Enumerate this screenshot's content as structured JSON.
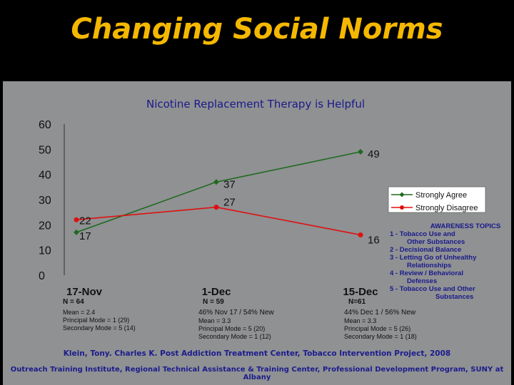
{
  "slide_title": "Changing Social Norms",
  "chart_data": {
    "type": "line",
    "title": "Nicotine Replacement Therapy is Helpful",
    "categories": [
      "17-Nov",
      "1-Dec",
      "15-Dec"
    ],
    "series": [
      {
        "name": "Strongly Agree",
        "values": [
          17,
          37,
          49
        ],
        "color": "#1f6a1f"
      },
      {
        "name": "Strongly Disagree",
        "values": [
          22,
          27,
          16
        ],
        "color": "#e01010"
      }
    ],
    "ylim": [
      0,
      60
    ],
    "yticks": [
      "0",
      "10",
      "20",
      "30",
      "40",
      "50",
      "60"
    ],
    "data_labels": [
      [
        "17",
        "37",
        "49"
      ],
      [
        "22",
        "27",
        "16"
      ]
    ],
    "legend_position": "right"
  },
  "notes": [
    {
      "n": "N = 64",
      "lines": [
        "Mean = 2.4",
        "Principal Mode = 1 (29)",
        "Secondary Mode = 5 (14)"
      ]
    },
    {
      "n": "N = 59",
      "sub": "46% Nov 17 / 54% New",
      "lines": [
        "Mean = 3.3",
        "Principal Mode = 5 (20)",
        "Secondary Mode = 1 (12)"
      ]
    },
    {
      "n": "N=61",
      "sub": "44% Dec 1 / 56% New",
      "lines": [
        "Mean = 3.3",
        "Principal Mode = 5 (26)",
        "Secondary Mode = 1 (18)"
      ]
    }
  ],
  "awareness": {
    "heading": "AWARENESS TOPICS",
    "items": [
      {
        "label": "1 -  Tobacco Use and",
        "cont": "Other Substances"
      },
      {
        "label": "2 -  Decisional Balance",
        "cont": ""
      },
      {
        "label": "3 -  Letting Go of Unhealthy",
        "cont": "Relationships"
      },
      {
        "label": "4 -  Review / Behavioral",
        "cont": "Defenses"
      },
      {
        "label": "5 -  Tobacco Use and Other",
        "cont": "Substances"
      }
    ]
  },
  "footer": {
    "citation": "Klein, Tony. Charles K. Post Addiction Treatment Center, Tobacco Intervention Project, 2008",
    "credit": "Outreach Training Institute, Regional Technical Assistance & Training Center, Professional Development Program, SUNY at Albany"
  }
}
